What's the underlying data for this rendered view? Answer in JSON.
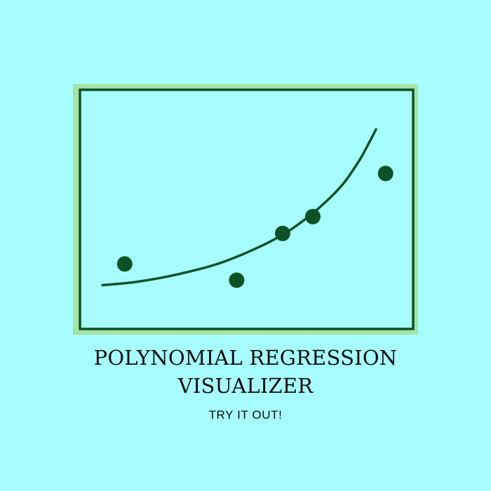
{
  "colors": {
    "background": "#a7fdfd",
    "frame_outer": "#a6e3a6",
    "frame_stroke": "#0b5226",
    "plot_fill": "#a7fdfd",
    "mark": "#0b5226",
    "text": "#0d0d0d"
  },
  "logo": {
    "title_line1": "POLYNOMIAL REGRESSION",
    "title_line2": "VISUALIZER",
    "cta_label": "TRY IT OUT!"
  },
  "chart_data": {
    "type": "scatter",
    "title": "",
    "xlabel": "",
    "ylabel": "",
    "xlim": [
      0,
      10
    ],
    "ylim": [
      0,
      10
    ],
    "grid": false,
    "series": [
      {
        "kind": "points",
        "x": [
          1.09,
          5.06,
          6.69,
          7.76,
          10.34
        ],
        "y": [
          2.54,
          1.74,
          4.04,
          4.87,
          6.99
        ]
      },
      {
        "kind": "curve",
        "x": [
          0.3,
          1.5,
          3.0,
          4.5,
          6.0,
          7.0,
          8.0,
          8.8,
          9.4,
          9.8,
          10.0
        ],
        "y": [
          1.5,
          1.66,
          2.04,
          2.6,
          3.47,
          4.25,
          5.32,
          6.42,
          7.61,
          8.62,
          9.16
        ]
      }
    ]
  }
}
